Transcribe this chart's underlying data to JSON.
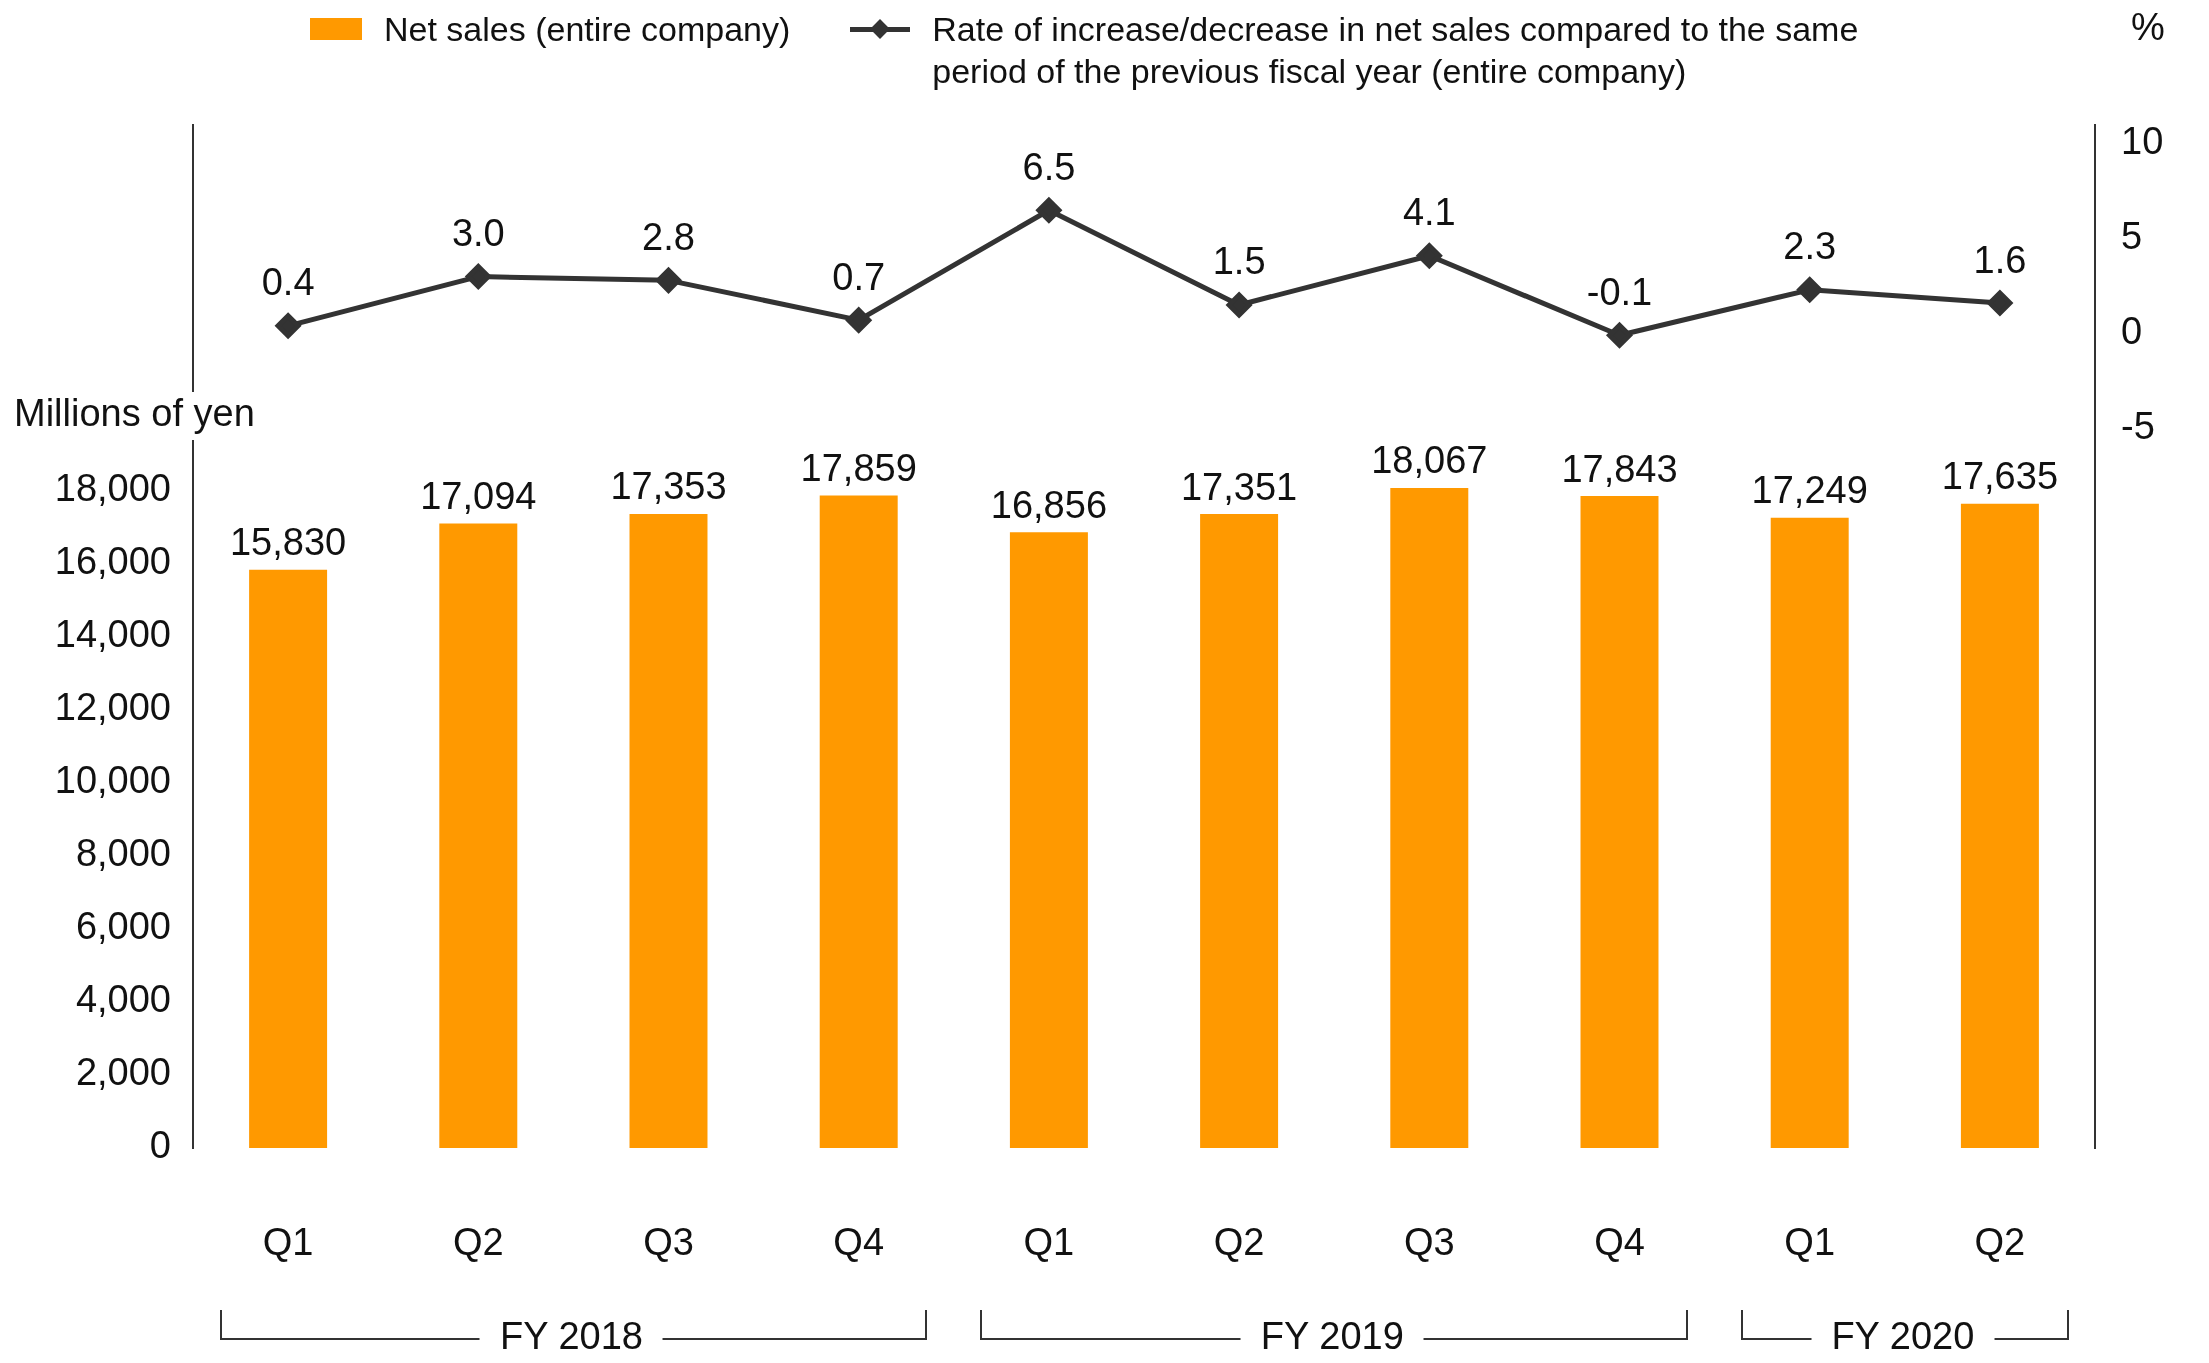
{
  "chart_data": {
    "type": "bar",
    "categories": [
      "Q1",
      "Q2",
      "Q3",
      "Q4",
      "Q1",
      "Q2",
      "Q3",
      "Q4",
      "Q1",
      "Q2"
    ],
    "series": [
      {
        "name": "Net sales (entire company)",
        "color": "#ff9900",
        "values": [
          15830,
          17094,
          17353,
          17859,
          16856,
          17351,
          18067,
          17843,
          17249,
          17635
        ],
        "value_labels": [
          "15,830",
          "17,094",
          "17,353",
          "17,859",
          "16,856",
          "17,351",
          "18,067",
          "17,843",
          "17,249",
          "17,635"
        ]
      },
      {
        "name": "Rate of increase/decrease in net sales compared to the same period of the previous fiscal year (entire company)",
        "type": "line",
        "axis": "y2",
        "color": "#333333",
        "values": [
          0.4,
          3.0,
          2.8,
          0.7,
          6.5,
          1.5,
          4.1,
          -0.1,
          2.3,
          1.6
        ],
        "value_labels": [
          "0.4",
          "3.0",
          "2.8",
          "0.7",
          "6.5",
          "1.5",
          "4.1",
          "-0.1",
          "2.3",
          "1.6"
        ]
      }
    ],
    "marker": "diamond",
    "ylabel": "Millions of yen",
    "y2label": "%",
    "ylim": [
      0,
      28000
    ],
    "yticks": [
      0,
      {
        "value": 2000,
        "label": "2,000"
      },
      {
        "value": 4000,
        "label": "4,000"
      },
      {
        "value": 6000,
        "label": "6,000"
      },
      {
        "value": 8000,
        "label": "8,000"
      },
      {
        "value": 10000,
        "label": "10,000"
      },
      {
        "value": 12000,
        "label": "12,000"
      },
      {
        "value": 14000,
        "label": "14,000"
      },
      {
        "value": 16000,
        "label": "16,000"
      },
      {
        "value": 18000,
        "label": "18,000"
      }
    ],
    "y2lim": [
      -43,
      11
    ],
    "y2ticks": [
      -5,
      0,
      5,
      10
    ],
    "legend": "top",
    "grid": false,
    "annotations": [
      "FY 2018",
      "FY 2019",
      "FY 2020"
    ]
  }
}
